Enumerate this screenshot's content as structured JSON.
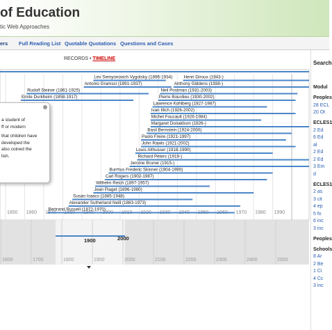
{
  "header": {
    "title": "of Education",
    "subtitle": "tic Web Approaches"
  },
  "nav": [
    "ers",
    "Full Reading List",
    "Quotable Quotations",
    "Questions and Cases"
  ],
  "timeline": {
    "tabs": [
      "RECORDS",
      "TIMELINE"
    ],
    "people": [
      [
        "Lev Semyonovich Vygotsky (1896-1934)",
        "Henri Giroux (1943-)"
      ],
      [
        "Antonio Gramsci (1891-1937)",
        "Anthony Giddens (1938-)"
      ],
      [
        "Rudolf Steiner (1861-1925)",
        "Neil Postman (1931-2003)"
      ],
      [
        "Emile Durkheim (1858-1917)",
        "Pierre Bourdieu (1930-2002)"
      ],
      [
        "Lawrence Kohlberg (1927-1987)"
      ],
      [
        "Ivan Illich (1926-2002)"
      ],
      [
        "Michel Foucault (1926-1984)"
      ],
      [
        "Margaret Donaldson (1926-)"
      ],
      [
        "Basil Bernstein (1924-2000)"
      ],
      [
        "Paolo Freire (1921-1997)"
      ],
      [
        "John Rawls (1921-2002)"
      ],
      [
        "Louis Althusser (1918-1990)"
      ],
      [
        "Richard Peters (1919-)"
      ],
      [
        "Jerome Bruner (1915-)"
      ],
      [
        "Burrhus Frederic Skinner (1904-1990)"
      ],
      [
        "Carl Rogers (1902-1987)"
      ],
      [
        "Wilhelm Reich (1897-1957)"
      ],
      [
        "Jean Piaget (1896-1980)"
      ],
      [
        "Susan Isaacs (1885-1948)"
      ],
      [
        "Alexander Sutherland Neill (1883-1973)"
      ],
      [
        "Bertrand Russell (1872-1970)"
      ]
    ],
    "decades": [
      1850,
      1860,
      1870,
      1880,
      1890,
      1900,
      1910,
      1920,
      1930,
      1940,
      1950,
      1960,
      1970,
      1980,
      1990
    ],
    "major": [
      2000
    ],
    "overview_centuries": [
      1600,
      1700,
      1800,
      1900,
      2000,
      2100,
      2200,
      2300,
      2400,
      2500
    ],
    "overview_major": [
      1900,
      2000
    ]
  },
  "tooltip": [
    "a student of",
    "ff or modern",
    "that children have",
    "developed the",
    "also coined the",
    "lish."
  ],
  "sidebar": {
    "search": "Search",
    "modules": "Modul",
    "groups": [
      {
        "title": "Peoples",
        "items": [
          "28 ECL",
          "20 Ot"
        ]
      },
      {
        "title": "ECLES1",
        "items": [
          "2 Ed",
          "6 Ed",
          "al",
          "2 Ed",
          "2 Ed",
          "3 Em",
          "d"
        ]
      },
      {
        "title": "ECLES1",
        "items": [
          "2 as",
          "3 cit",
          "4 ep",
          "5 fo",
          "6 inc",
          "3 inc"
        ]
      },
      {
        "title": "Peoples",
        "items": []
      },
      {
        "title": "Schools",
        "items": [
          "8 Ar",
          "2 Be",
          "1 Ci",
          "4 Cc",
          "3 inc"
        ]
      }
    ]
  }
}
